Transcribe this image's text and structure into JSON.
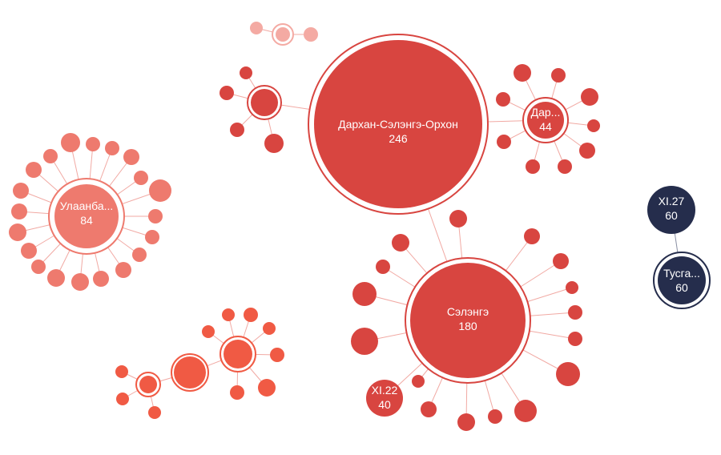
{
  "colors": {
    "red": "#d84540",
    "salmon": "#ee7a6e",
    "light": "#f4aaa3",
    "orange": "#f05a44",
    "navy": "#252d4c",
    "edge_red": "#f1a9a3",
    "edge_navy": "#8a8fa3"
  },
  "labels": {
    "darkhan_name": "Дархан-Сэлэнгэ-Орхон",
    "darkhan_value": "246",
    "selenge_name": "Сэлэнгэ",
    "selenge_value": "180",
    "ulaanbaatar_name": "Улаанба...",
    "ulaanbaatar_value": "84",
    "dar_name": "Дар...",
    "dar_value": "44",
    "xi22_name": "XI.22",
    "xi22_value": "40",
    "xi27_name": "XI.27",
    "xi27_value": "60",
    "tusga_name": "Тусга...",
    "tusga_value": "60"
  }
}
